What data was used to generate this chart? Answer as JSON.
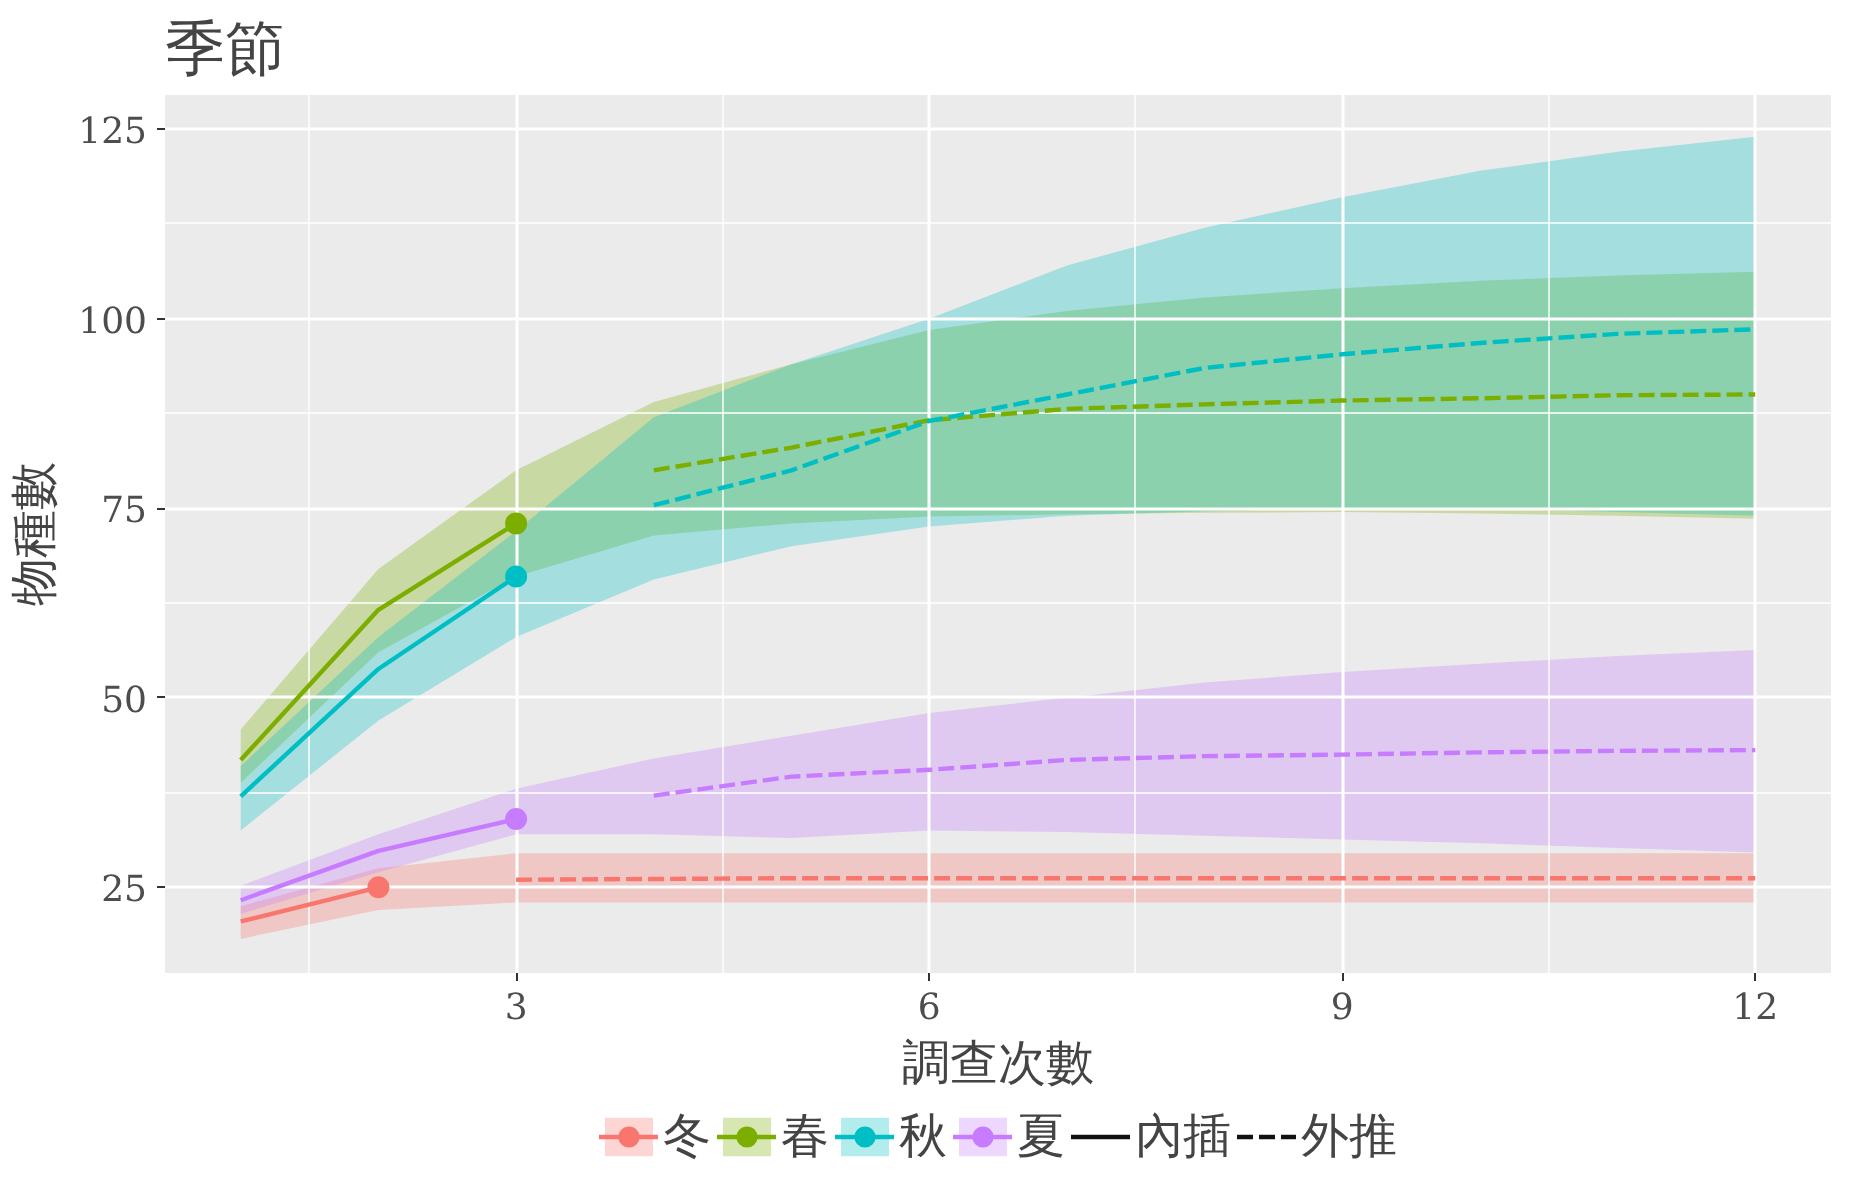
{
  "chart_data": {
    "type": "line",
    "title": "季節",
    "xlabel": "調查次數",
    "ylabel": "物種數",
    "xlim": [
      0.45,
      12.55
    ],
    "ylim": [
      13.7,
      129.5
    ],
    "xticks": [
      3,
      6,
      9,
      12
    ],
    "yticks": [
      25,
      50,
      75,
      100,
      125
    ],
    "grid": true,
    "legend": "bottom",
    "annotations": [
      "內插",
      "外推"
    ],
    "series": [
      {
        "name": "冬",
        "line_style": "solid",
        "color": "#f8766d",
        "x": [
          1,
          2
        ],
        "values": [
          20.5,
          25
        ],
        "lower": [
          18.2,
          22
        ],
        "upper": [
          22.5,
          27.5
        ]
      },
      {
        "line_style": "dashed",
        "color": "#f8766d",
        "x": [
          2,
          3,
          4,
          5,
          6,
          7,
          8,
          9,
          10,
          11,
          12
        ],
        "values": [
          null,
          26,
          26.1,
          26.2,
          26.2,
          26.2,
          26.2,
          26.2,
          26.2,
          26.2,
          26.2
        ],
        "lower": [
          22,
          23,
          23,
          23,
          23,
          23,
          23,
          23,
          23,
          23,
          23
        ],
        "upper": [
          27.5,
          29.5,
          29.5,
          29.5,
          29.5,
          29.5,
          29.5,
          29.5,
          29.5,
          29.5,
          29.5
        ]
      },
      {
        "type": "scatter",
        "marker": "circle",
        "color": "#f8766d",
        "x": [
          2
        ],
        "values": [
          25
        ]
      },
      {
        "name": "春",
        "line_style": "solid",
        "color": "#7cae00",
        "x": [
          1,
          2,
          3
        ],
        "values": [
          41.8,
          61.6,
          73
        ],
        "lower": [
          38.8,
          56,
          66
        ],
        "upper": [
          45.8,
          67,
          80
        ]
      },
      {
        "line_style": "dashed",
        "color": "#7cae00",
        "x": [
          3,
          4,
          5,
          6,
          7,
          8,
          9,
          10,
          11,
          12
        ],
        "values": [
          null,
          80,
          83,
          86.6,
          88.1,
          88.7,
          89.2,
          89.5,
          89.9,
          90
        ],
        "lower": [
          66,
          71.4,
          73,
          73.9,
          74.2,
          74.4,
          74.5,
          74.3,
          74,
          73.6
        ],
        "upper": [
          80,
          89,
          94,
          98.5,
          101,
          102.8,
          104,
          105,
          105.7,
          106.2
        ]
      },
      {
        "type": "scatter",
        "marker": "circle",
        "color": "#7cae00",
        "x": [
          3
        ],
        "values": [
          73
        ]
      },
      {
        "name": "秋",
        "line_style": "solid",
        "color": "#00bfc4",
        "x": [
          1,
          2,
          3
        ],
        "values": [
          37,
          53.8,
          66
        ],
        "lower": [
          32.5,
          47,
          58
        ],
        "upper": [
          41,
          58,
          72
        ]
      },
      {
        "line_style": "dashed",
        "color": "#00bfc4",
        "x": [
          3,
          4,
          5,
          6,
          7,
          8,
          9,
          10,
          11,
          12
        ],
        "values": [
          null,
          75.4,
          80,
          86.5,
          90,
          93.5,
          95.3,
          96.8,
          98,
          98.6
        ],
        "lower": [
          58,
          65.6,
          70,
          72.6,
          74,
          74.6,
          75,
          75,
          74.5,
          74
        ],
        "upper": [
          72,
          87,
          94,
          100,
          107,
          112,
          116,
          119.5,
          122,
          124
        ]
      },
      {
        "type": "scatter",
        "marker": "circle",
        "color": "#00bfc4",
        "x": [
          3
        ],
        "values": [
          66
        ]
      },
      {
        "name": "夏",
        "line_style": "solid",
        "color": "#c77cff",
        "x": [
          1,
          2,
          3
        ],
        "values": [
          23.3,
          29.8,
          34
        ],
        "lower": [
          21.5,
          27,
          32
        ],
        "upper": [
          25.2,
          32,
          38
        ]
      },
      {
        "line_style": "dashed",
        "color": "#c77cff",
        "x": [
          3,
          4,
          5,
          6,
          7,
          8,
          9,
          10,
          11,
          12
        ],
        "values": [
          null,
          37.1,
          39.6,
          40.5,
          41.8,
          42.3,
          42.5,
          42.8,
          43,
          43.1
        ],
        "lower": [
          32,
          32,
          31.5,
          32.5,
          32.3,
          31.8,
          31.3,
          30.8,
          30.2,
          29.6
        ],
        "upper": [
          38,
          42,
          45,
          48,
          50,
          52,
          53.4,
          54.5,
          55.5,
          56.3
        ]
      },
      {
        "type": "scatter",
        "marker": "circle",
        "color": "#c77cff",
        "x": [
          3
        ],
        "values": [
          34
        ]
      }
    ]
  }
}
